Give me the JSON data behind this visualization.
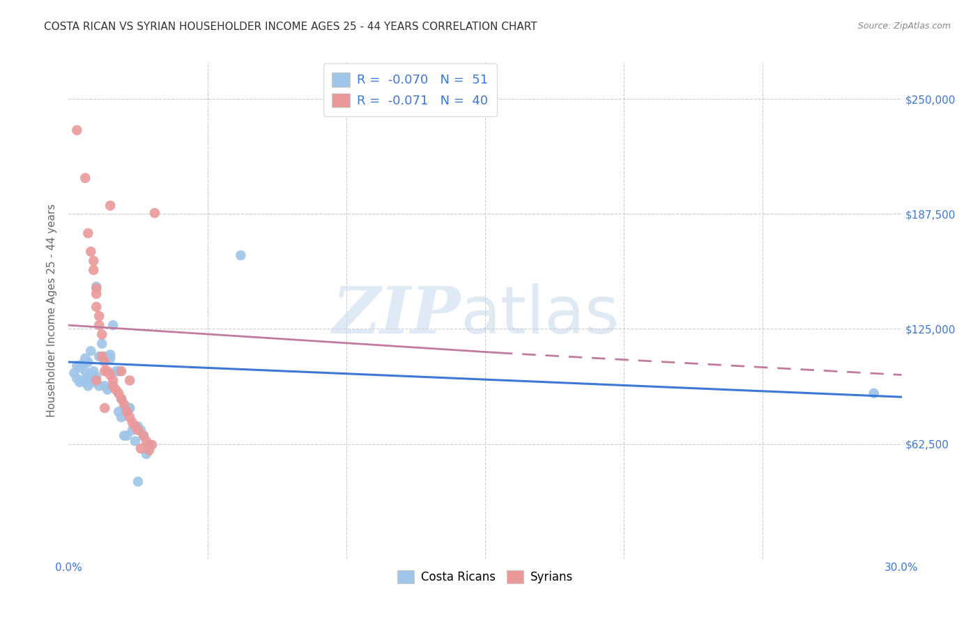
{
  "title": "COSTA RICAN VS SYRIAN HOUSEHOLDER INCOME AGES 25 - 44 YEARS CORRELATION CHART",
  "source": "Source: ZipAtlas.com",
  "ylabel": "Householder Income Ages 25 - 44 years",
  "yticks": [
    0,
    62500,
    125000,
    187500,
    250000
  ],
  "ytick_labels": [
    "",
    "$62,500",
    "$125,000",
    "$187,500",
    "$250,000"
  ],
  "xmin": 0.0,
  "xmax": 0.3,
  "ymin": 0,
  "ymax": 270000,
  "watermark_zip": "ZIP",
  "watermark_atlas": "atlas",
  "legend_r1": "-0.070",
  "legend_n1": "51",
  "legend_r2": "-0.071",
  "legend_n2": "40",
  "legend_label1": "Costa Ricans",
  "legend_label2": "Syrians",
  "color_blue": "#9fc5e8",
  "color_pink": "#ea9999",
  "line_color_blue": "#3c78d8",
  "line_color_pink": "#c27ba0",
  "title_color": "#333333",
  "source_color": "#888888",
  "tick_color": "#3c78d8",
  "ylabel_color": "#666666",
  "scatter_blue": [
    [
      0.002,
      101000
    ],
    [
      0.003,
      98000
    ],
    [
      0.003,
      105000
    ],
    [
      0.004,
      96000
    ],
    [
      0.004,
      104000
    ],
    [
      0.005,
      97000
    ],
    [
      0.005,
      106000
    ],
    [
      0.006,
      96000
    ],
    [
      0.006,
      102000
    ],
    [
      0.006,
      109000
    ],
    [
      0.007,
      99000
    ],
    [
      0.007,
      107000
    ],
    [
      0.007,
      94000
    ],
    [
      0.008,
      97000
    ],
    [
      0.008,
      100000
    ],
    [
      0.008,
      113000
    ],
    [
      0.009,
      96000
    ],
    [
      0.009,
      102000
    ],
    [
      0.01,
      99000
    ],
    [
      0.01,
      148000
    ],
    [
      0.011,
      94000
    ],
    [
      0.011,
      110000
    ],
    [
      0.012,
      117000
    ],
    [
      0.012,
      110000
    ],
    [
      0.013,
      110000
    ],
    [
      0.013,
      94000
    ],
    [
      0.014,
      92000
    ],
    [
      0.015,
      109000
    ],
    [
      0.015,
      111000
    ],
    [
      0.016,
      127000
    ],
    [
      0.017,
      102000
    ],
    [
      0.018,
      102000
    ],
    [
      0.018,
      80000
    ],
    [
      0.019,
      87000
    ],
    [
      0.019,
      77000
    ],
    [
      0.02,
      82000
    ],
    [
      0.02,
      67000
    ],
    [
      0.021,
      80000
    ],
    [
      0.021,
      67000
    ],
    [
      0.022,
      82000
    ],
    [
      0.022,
      82000
    ],
    [
      0.023,
      70000
    ],
    [
      0.024,
      64000
    ],
    [
      0.025,
      72000
    ],
    [
      0.025,
      42000
    ],
    [
      0.026,
      70000
    ],
    [
      0.027,
      67000
    ],
    [
      0.028,
      57000
    ],
    [
      0.029,
      62000
    ],
    [
      0.062,
      165000
    ],
    [
      0.29,
      90000
    ]
  ],
  "scatter_pink": [
    [
      0.003,
      233000
    ],
    [
      0.006,
      207000
    ],
    [
      0.007,
      177000
    ],
    [
      0.008,
      167000
    ],
    [
      0.009,
      162000
    ],
    [
      0.009,
      157000
    ],
    [
      0.01,
      147000
    ],
    [
      0.01,
      144000
    ],
    [
      0.01,
      137000
    ],
    [
      0.011,
      132000
    ],
    [
      0.011,
      127000
    ],
    [
      0.012,
      122000
    ],
    [
      0.012,
      110000
    ],
    [
      0.013,
      107000
    ],
    [
      0.013,
      102000
    ],
    [
      0.014,
      102000
    ],
    [
      0.015,
      100000
    ],
    [
      0.015,
      192000
    ],
    [
      0.016,
      97000
    ],
    [
      0.016,
      94000
    ],
    [
      0.017,
      92000
    ],
    [
      0.018,
      90000
    ],
    [
      0.019,
      87000
    ],
    [
      0.02,
      84000
    ],
    [
      0.021,
      80000
    ],
    [
      0.022,
      77000
    ],
    [
      0.023,
      74000
    ],
    [
      0.024,
      72000
    ],
    [
      0.025,
      70000
    ],
    [
      0.027,
      67000
    ],
    [
      0.028,
      64000
    ],
    [
      0.03,
      62000
    ],
    [
      0.031,
      188000
    ],
    [
      0.01,
      97000
    ],
    [
      0.013,
      82000
    ],
    [
      0.022,
      97000
    ],
    [
      0.026,
      60000
    ],
    [
      0.021,
      80000
    ],
    [
      0.019,
      102000
    ],
    [
      0.029,
      59000
    ]
  ],
  "blue_line": [
    [
      0.0,
      107000
    ],
    [
      0.3,
      88000
    ]
  ],
  "pink_line_solid": [
    [
      0.0,
      127000
    ],
    [
      0.155,
      112000
    ]
  ],
  "pink_line_dashed": [
    [
      0.155,
      112000
    ],
    [
      0.3,
      100000
    ]
  ]
}
